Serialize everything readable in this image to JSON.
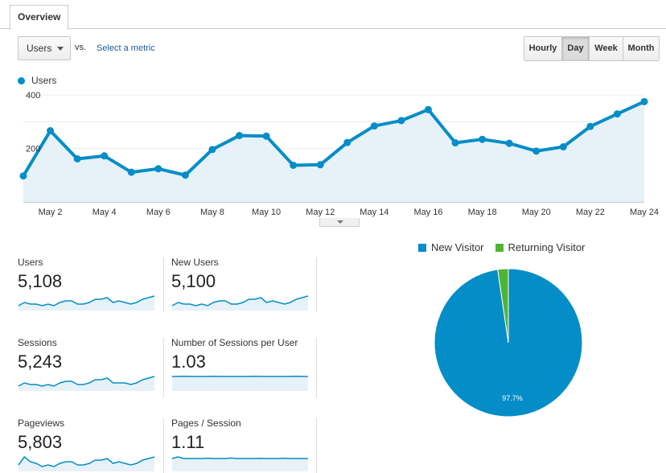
{
  "tabs": [
    {
      "label": "Overview"
    }
  ],
  "metric_selector": {
    "selected": "Users",
    "vs_label": "vs.",
    "select_link": "Select a metric"
  },
  "periods": [
    {
      "label": "Hourly",
      "active": false
    },
    {
      "label": "Day",
      "active": true
    },
    {
      "label": "Week",
      "active": false
    },
    {
      "label": "Month",
      "active": false
    }
  ],
  "colors": {
    "primary": "#058dc7",
    "returning": "#50b432",
    "area_fill": "#e6f2f8"
  },
  "chart_data": [
    {
      "type": "line",
      "series": [
        {
          "name": "Users",
          "values": [
            97,
            266,
            161,
            172,
            111,
            124,
            100,
            196,
            248,
            246,
            137,
            139,
            222,
            284,
            304,
            345,
            221,
            234,
            219,
            190,
            206,
            282,
            329,
            375
          ]
        }
      ],
      "x": [
        "May 1",
        "May 2",
        "May 3",
        "May 4",
        "May 5",
        "May 6",
        "May 7",
        "May 8",
        "May 9",
        "May 10",
        "May 11",
        "May 12",
        "May 13",
        "May 14",
        "May 15",
        "May 16",
        "May 17",
        "May 18",
        "May 19",
        "May 20",
        "May 21",
        "May 22",
        "May 23",
        "May 24"
      ],
      "x_tick_labels": [
        "May 2",
        "May 4",
        "May 6",
        "May 8",
        "May 10",
        "May 12",
        "May 14",
        "May 16",
        "May 18",
        "May 20",
        "May 22",
        "May 24"
      ],
      "y_tick_labels": [
        "400",
        "200"
      ],
      "ylim": [
        0,
        400
      ],
      "grid": true,
      "legend": "top-left"
    },
    {
      "type": "pie",
      "legend": "top",
      "slices": [
        {
          "name": "New Visitor",
          "value": 97.7,
          "label": "97.7%",
          "color": "#058dc7"
        },
        {
          "name": "Returning Visitor",
          "value": 2.3,
          "label": "",
          "color": "#50b432"
        }
      ]
    }
  ],
  "scorecards": [
    {
      "title": "Users",
      "value": "5,108",
      "spark": [
        3,
        5,
        4,
        4,
        3,
        4,
        3,
        5,
        6,
        6,
        4,
        4,
        5,
        7,
        7,
        8,
        5,
        6,
        5,
        4,
        5,
        7,
        8,
        9
      ]
    },
    {
      "title": "New Users",
      "value": "5,100",
      "spark": [
        3,
        5,
        4,
        4,
        3,
        4,
        3,
        5,
        6,
        6,
        4,
        4,
        5,
        7,
        7,
        8,
        5,
        6,
        5,
        4,
        5,
        7,
        8,
        9
      ]
    },
    {
      "title": "Sessions",
      "value": "5,243",
      "spark": [
        3,
        5,
        4,
        4,
        3,
        4,
        3,
        5,
        6,
        6,
        4,
        4,
        5,
        7,
        7,
        8,
        5,
        5,
        5,
        4,
        5,
        7,
        8,
        9
      ]
    },
    {
      "title": "Number of Sessions per User",
      "value": "1.03",
      "spark": [
        9,
        9,
        9.1,
        9,
        9,
        9,
        9,
        9.1,
        9,
        9,
        9,
        9,
        9,
        9,
        9.1,
        9,
        9,
        9,
        9,
        9,
        9,
        9.1,
        9,
        9
      ]
    },
    {
      "title": "Pageviews",
      "value": "5,803",
      "spark": [
        4,
        9,
        6,
        5,
        3,
        4,
        3,
        5,
        6,
        6,
        4,
        4,
        5,
        7,
        7,
        8,
        5,
        6,
        5,
        4,
        5,
        7,
        8,
        9
      ]
    },
    {
      "title": "Pages / Session",
      "value": "1.11",
      "spark": [
        8,
        9,
        8,
        8,
        8,
        8,
        8.2,
        8,
        8,
        8,
        8.3,
        8,
        8,
        8,
        8,
        8.1,
        8,
        8,
        8,
        8.2,
        8,
        8,
        8,
        8
      ]
    }
  ]
}
